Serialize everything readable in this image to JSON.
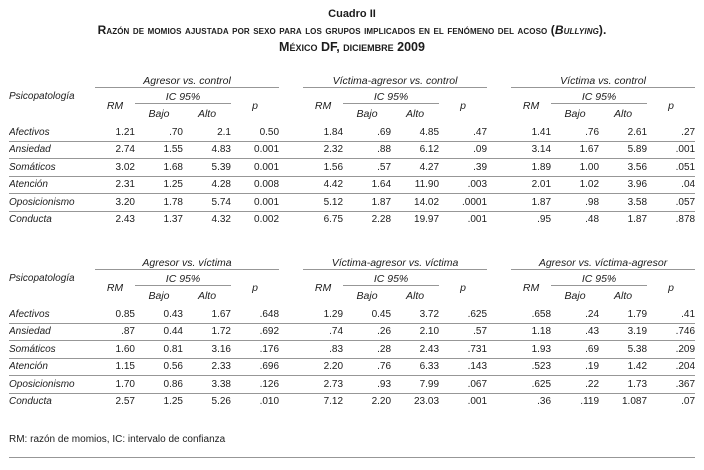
{
  "title": {
    "label": "Cuadro II",
    "line1_prefix": "Razón de momios ajustada por sexo para los grupos implicados en el fenómeno del acoso (",
    "line1_italic": "Bullying",
    "line1_suffix": ").",
    "line2": "México DF, diciembre 2009"
  },
  "headers": {
    "row_label": "Psicopatología",
    "rm": "RM",
    "ic": "IC 95%",
    "low": "Bajo",
    "high": "Alto",
    "p": "p"
  },
  "footnote": "RM: razón de momios, IC: intervalo de confianza",
  "colors": {
    "rule": "#979797",
    "text": "#1c1c1c"
  },
  "tables": [
    {
      "groups": [
        "Agresor vs. control",
        "Víctima-agresor vs. control",
        "Víctima vs. control"
      ],
      "rows": [
        {
          "label": "Afectivos",
          "cells": [
            "1.21",
            ".70",
            "2.1",
            "0.50",
            "1.84",
            ".69",
            "4.85",
            ".47",
            "1.41",
            ".76",
            "2.61",
            ".27"
          ]
        },
        {
          "label": "Ansiedad",
          "cells": [
            "2.74",
            "1.55",
            "4.83",
            "0.001",
            "2.32",
            ".88",
            "6.12",
            ".09",
            "3.14",
            "1.67",
            "5.89",
            ".001"
          ]
        },
        {
          "label": "Somáticos",
          "cells": [
            "3.02",
            "1.68",
            "5.39",
            "0.001",
            "1.56",
            ".57",
            "4.27",
            ".39",
            "1.89",
            "1.00",
            "3.56",
            ".051"
          ]
        },
        {
          "label": "Atención",
          "cells": [
            "2.31",
            "1.25",
            "4.28",
            "0.008",
            "4.42",
            "1.64",
            "11.90",
            ".003",
            "2.01",
            "1.02",
            "3.96",
            ".04"
          ]
        },
        {
          "label": "Oposicionismo",
          "cells": [
            "3.20",
            "1.78",
            "5.74",
            "0.001",
            "5.12",
            "1.87",
            "14.02",
            ".0001",
            "1.87",
            ".98",
            "3.58",
            ".057"
          ]
        },
        {
          "label": "Conducta",
          "cells": [
            "2.43",
            "1.37",
            "4.32",
            "0.002",
            "6.75",
            "2.28",
            "19.97",
            ".001",
            ".95",
            ".48",
            "1.87",
            ".878"
          ]
        }
      ]
    },
    {
      "groups": [
        "Agresor vs. víctima",
        "Víctima-agresor vs. víctima",
        "Agresor vs. víctima-agresor"
      ],
      "rows": [
        {
          "label": "Afectivos",
          "cells": [
            "0.85",
            "0.43",
            "1.67",
            ".648",
            "1.29",
            "0.45",
            "3.72",
            ".625",
            ".658",
            ".24",
            "1.79",
            ".41"
          ]
        },
        {
          "label": "Ansiedad",
          "cells": [
            ".87",
            "0.44",
            "1.72",
            ".692",
            ".74",
            ".26",
            "2.10",
            ".57",
            "1.18",
            ".43",
            "3.19",
            ".746"
          ]
        },
        {
          "label": "Somáticos",
          "cells": [
            "1.60",
            "0.81",
            "3.16",
            ".176",
            ".83",
            ".28",
            "2.43",
            ".731",
            "1.93",
            ".69",
            "5.38",
            ".209"
          ]
        },
        {
          "label": "Atención",
          "cells": [
            "1.15",
            "0.56",
            "2.33",
            ".696",
            "2.20",
            ".76",
            "6.33",
            ".143",
            ".523",
            ".19",
            "1.42",
            ".204"
          ]
        },
        {
          "label": "Oposicionismo",
          "cells": [
            "1.70",
            "0.86",
            "3.38",
            ".126",
            "2.73",
            ".93",
            "7.99",
            ".067",
            ".625",
            ".22",
            "1.73",
            ".367"
          ]
        },
        {
          "label": "Conducta",
          "cells": [
            "2.57",
            "1.25",
            "5.26",
            ".010",
            "7.12",
            "2.20",
            "23.03",
            ".001",
            ".36",
            ".119",
            "1.087",
            ".07"
          ]
        }
      ]
    }
  ]
}
